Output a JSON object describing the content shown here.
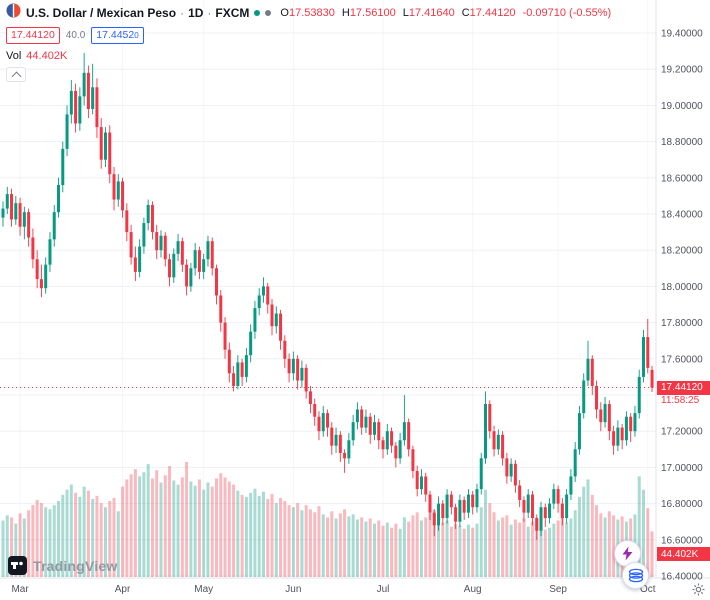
{
  "header": {
    "symbol": "U.S. Dollar / Mexican Peso",
    "sep1": "·",
    "interval": "1D",
    "sep2": "·",
    "exchange": "FXCM",
    "ohlc": {
      "o_label": "O",
      "o": "17.53830",
      "h_label": "H",
      "h": "17.56100",
      "l_label": "L",
      "l": "17.41640",
      "c_label": "C",
      "c": "17.44120",
      "change": "-0.09710 (-0.55%)"
    },
    "bid": "17.44120",
    "spread": "40.0",
    "ask": "17.4452",
    "ask_last_digit": "0",
    "vol_label": "Vol",
    "vol_value": "44.402K"
  },
  "price_scale": {
    "ticks": [
      {
        "label": "19.40000",
        "value": 19.4
      },
      {
        "label": "19.20000",
        "value": 19.2
      },
      {
        "label": "19.00000",
        "value": 19.0
      },
      {
        "label": "18.80000",
        "value": 18.8
      },
      {
        "label": "18.60000",
        "value": 18.6
      },
      {
        "label": "18.40000",
        "value": 18.4
      },
      {
        "label": "18.20000",
        "value": 18.2
      },
      {
        "label": "18.00000",
        "value": 18.0
      },
      {
        "label": "17.80000",
        "value": 17.8
      },
      {
        "label": "17.60000",
        "value": 17.6
      },
      {
        "label": "17.40000",
        "value": 17.4
      },
      {
        "label": "17.20000",
        "value": 17.2
      },
      {
        "label": "17.00000",
        "value": 17.0
      },
      {
        "label": "16.80000",
        "value": 16.8
      },
      {
        "label": "16.60000",
        "value": 16.6
      },
      {
        "label": "16.40000",
        "value": 16.4
      }
    ],
    "last_price": {
      "label": "17.44120",
      "value": 17.4412,
      "countdown": "11:58:25"
    },
    "volume_badge": "44.402K"
  },
  "time_scale": {
    "ticks": [
      {
        "label": "Mar",
        "index": 4
      },
      {
        "label": "Apr",
        "index": 28
      },
      {
        "label": "May",
        "index": 47
      },
      {
        "label": "Jun",
        "index": 68
      },
      {
        "label": "Jul",
        "index": 89
      },
      {
        "label": "Aug",
        "index": 110
      },
      {
        "label": "Sep",
        "index": 130
      },
      {
        "label": "Oct",
        "index": 151
      }
    ]
  },
  "logo_text": "TradingView",
  "colors": {
    "up": "#089981",
    "down": "#f23645",
    "vol_up": "rgba(8,153,129,0.35)",
    "vol_down": "rgba(242,54,69,0.35)",
    "grid": "#eef1f6",
    "vgrid": "#f3f5f9",
    "axis_border": "#e0e3eb",
    "badge_red": "#f23645",
    "accent_blue": "#2962ff"
  },
  "chart_data": {
    "type": "candlestick",
    "title": "U.S. Dollar / Mexican Peso · 1D · FXCM",
    "symbol": "USDMXN",
    "interval": "1D",
    "exchange": "FXCM",
    "y_range": [
      16.4,
      19.4
    ],
    "x_tick_labels": [
      "Mar",
      "Apr",
      "May",
      "Jun",
      "Jul",
      "Aug",
      "Sep",
      "Oct"
    ],
    "last": {
      "open": 17.5383,
      "high": 17.561,
      "low": 17.4164,
      "close": 17.4412,
      "change": -0.0971,
      "change_pct": -0.55,
      "volume_k": 44.402
    },
    "volume_unit": "K",
    "candles_format": [
      "open",
      "high",
      "low",
      "close",
      "volume_k"
    ],
    "candles": [
      [
        18.38,
        18.47,
        18.33,
        18.43,
        55
      ],
      [
        18.43,
        18.55,
        18.4,
        18.51,
        60
      ],
      [
        18.51,
        18.54,
        18.33,
        18.37,
        58
      ],
      [
        18.37,
        18.5,
        18.34,
        18.46,
        52
      ],
      [
        18.46,
        18.49,
        18.28,
        18.33,
        62
      ],
      [
        18.33,
        18.44,
        18.26,
        18.41,
        57
      ],
      [
        18.41,
        18.43,
        18.22,
        18.27,
        65
      ],
      [
        18.27,
        18.32,
        18.1,
        18.15,
        70
      ],
      [
        18.15,
        18.2,
        17.99,
        18.04,
        75
      ],
      [
        18.04,
        18.12,
        17.94,
        17.99,
        72
      ],
      [
        17.99,
        18.16,
        17.96,
        18.12,
        68
      ],
      [
        18.12,
        18.3,
        18.08,
        18.26,
        66
      ],
      [
        18.26,
        18.45,
        18.22,
        18.41,
        70
      ],
      [
        18.41,
        18.6,
        18.38,
        18.56,
        74
      ],
      [
        18.56,
        18.8,
        18.52,
        18.76,
        80
      ],
      [
        18.76,
        19.0,
        18.72,
        18.95,
        85
      ],
      [
        18.95,
        19.14,
        18.9,
        19.08,
        90
      ],
      [
        19.08,
        19.12,
        18.85,
        18.9,
        82
      ],
      [
        18.9,
        19.1,
        18.86,
        19.05,
        78
      ],
      [
        19.05,
        19.29,
        19.0,
        19.18,
        88
      ],
      [
        19.18,
        19.22,
        18.93,
        18.98,
        84
      ],
      [
        18.98,
        19.23,
        18.95,
        19.1,
        76
      ],
      [
        19.1,
        19.15,
        18.82,
        18.88,
        79
      ],
      [
        18.88,
        18.93,
        18.65,
        18.7,
        72
      ],
      [
        18.7,
        18.88,
        18.66,
        18.85,
        68
      ],
      [
        18.85,
        18.89,
        18.57,
        18.62,
        74
      ],
      [
        18.62,
        18.66,
        18.42,
        18.48,
        77
      ],
      [
        18.48,
        18.62,
        18.44,
        18.58,
        64
      ],
      [
        18.58,
        18.6,
        18.38,
        18.42,
        88
      ],
      [
        18.42,
        18.46,
        18.25,
        18.3,
        95
      ],
      [
        18.3,
        18.34,
        18.12,
        18.16,
        100
      ],
      [
        18.16,
        18.22,
        18.03,
        18.08,
        105
      ],
      [
        18.08,
        18.26,
        18.05,
        18.22,
        98
      ],
      [
        18.22,
        18.38,
        18.18,
        18.35,
        102
      ],
      [
        18.35,
        18.48,
        18.31,
        18.45,
        110
      ],
      [
        18.45,
        18.47,
        18.26,
        18.3,
        96
      ],
      [
        18.3,
        18.34,
        18.15,
        18.2,
        104
      ],
      [
        18.2,
        18.31,
        18.16,
        18.28,
        92
      ],
      [
        18.28,
        18.3,
        18.11,
        18.15,
        99
      ],
      [
        18.15,
        18.18,
        18.0,
        18.05,
        108
      ],
      [
        18.05,
        18.21,
        18.02,
        18.18,
        94
      ],
      [
        18.18,
        18.29,
        18.14,
        18.25,
        90
      ],
      [
        18.25,
        18.27,
        18.08,
        18.12,
        97
      ],
      [
        18.12,
        18.15,
        17.95,
        18.0,
        112
      ],
      [
        18.0,
        18.13,
        17.97,
        18.1,
        93
      ],
      [
        18.1,
        18.24,
        18.06,
        18.2,
        89
      ],
      [
        18.2,
        18.22,
        18.04,
        18.08,
        95
      ],
      [
        18.08,
        18.18,
        18.04,
        18.15,
        85
      ],
      [
        18.15,
        18.28,
        18.11,
        18.25,
        92
      ],
      [
        18.25,
        18.27,
        18.06,
        18.1,
        88
      ],
      [
        18.1,
        18.12,
        17.9,
        17.95,
        96
      ],
      [
        17.95,
        17.98,
        17.75,
        17.8,
        101
      ],
      [
        17.8,
        17.83,
        17.6,
        17.65,
        97
      ],
      [
        17.65,
        17.69,
        17.47,
        17.52,
        93
      ],
      [
        17.52,
        17.56,
        17.42,
        17.45,
        90
      ],
      [
        17.45,
        17.62,
        17.43,
        17.58,
        84
      ],
      [
        17.58,
        17.6,
        17.45,
        17.5,
        80
      ],
      [
        17.5,
        17.66,
        17.47,
        17.62,
        78
      ],
      [
        17.62,
        17.79,
        17.58,
        17.75,
        82
      ],
      [
        17.75,
        17.92,
        17.71,
        17.88,
        86
      ],
      [
        17.88,
        17.99,
        17.84,
        17.95,
        79
      ],
      [
        17.95,
        18.05,
        17.91,
        18.0,
        83
      ],
      [
        18.0,
        18.02,
        17.85,
        17.9,
        76
      ],
      [
        17.9,
        17.93,
        17.73,
        17.78,
        81
      ],
      [
        17.78,
        17.89,
        17.74,
        17.85,
        72
      ],
      [
        17.85,
        17.87,
        17.65,
        17.7,
        77
      ],
      [
        17.7,
        17.73,
        17.55,
        17.6,
        74
      ],
      [
        17.6,
        17.63,
        17.47,
        17.52,
        70
      ],
      [
        17.52,
        17.64,
        17.48,
        17.6,
        68
      ],
      [
        17.6,
        17.62,
        17.43,
        17.48,
        72
      ],
      [
        17.48,
        17.59,
        17.44,
        17.55,
        65
      ],
      [
        17.55,
        17.57,
        17.38,
        17.42,
        70
      ],
      [
        17.42,
        17.45,
        17.3,
        17.35,
        66
      ],
      [
        17.35,
        17.38,
        17.23,
        17.28,
        63
      ],
      [
        17.28,
        17.31,
        17.15,
        17.2,
        69
      ],
      [
        17.2,
        17.34,
        17.17,
        17.3,
        61
      ],
      [
        17.3,
        17.32,
        17.17,
        17.22,
        58
      ],
      [
        17.22,
        17.25,
        17.07,
        17.12,
        64
      ],
      [
        17.12,
        17.22,
        17.08,
        17.18,
        57
      ],
      [
        17.18,
        17.2,
        17.03,
        17.08,
        62
      ],
      [
        17.08,
        17.1,
        16.97,
        17.05,
        66
      ],
      [
        17.05,
        17.19,
        17.02,
        17.15,
        59
      ],
      [
        17.15,
        17.29,
        17.12,
        17.25,
        61
      ],
      [
        17.25,
        17.36,
        17.21,
        17.32,
        56
      ],
      [
        17.32,
        17.34,
        17.18,
        17.22,
        58
      ],
      [
        17.22,
        17.32,
        17.19,
        17.28,
        54
      ],
      [
        17.28,
        17.3,
        17.13,
        17.18,
        57
      ],
      [
        17.18,
        17.29,
        17.15,
        17.25,
        52
      ],
      [
        17.25,
        17.27,
        17.1,
        17.15,
        55
      ],
      [
        17.15,
        17.17,
        17.05,
        17.1,
        50
      ],
      [
        17.1,
        17.24,
        17.07,
        17.2,
        53
      ],
      [
        17.2,
        17.22,
        17.08,
        17.12,
        48
      ],
      [
        17.12,
        17.14,
        17.0,
        17.05,
        52
      ],
      [
        17.05,
        17.19,
        17.02,
        17.15,
        47
      ],
      [
        17.15,
        17.4,
        17.12,
        17.25,
        58
      ],
      [
        17.25,
        17.27,
        17.06,
        17.1,
        54
      ],
      [
        17.1,
        17.12,
        16.94,
        16.98,
        60
      ],
      [
        16.98,
        17.01,
        16.84,
        16.88,
        63
      ],
      [
        16.88,
        16.99,
        16.85,
        16.95,
        55
      ],
      [
        16.95,
        16.97,
        16.81,
        16.85,
        58
      ],
      [
        16.85,
        16.87,
        16.71,
        16.75,
        62
      ],
      [
        16.75,
        16.77,
        16.62,
        16.68,
        65
      ],
      [
        16.68,
        16.84,
        16.65,
        16.8,
        57
      ],
      [
        16.8,
        16.82,
        16.68,
        16.72,
        53
      ],
      [
        16.72,
        16.88,
        16.69,
        16.85,
        55
      ],
      [
        16.85,
        16.87,
        16.74,
        16.78,
        49
      ],
      [
        16.78,
        16.8,
        16.66,
        16.7,
        52
      ],
      [
        16.7,
        16.85,
        16.67,
        16.82,
        50
      ],
      [
        16.82,
        16.84,
        16.71,
        16.75,
        47
      ],
      [
        16.75,
        16.88,
        16.72,
        16.85,
        51
      ],
      [
        16.85,
        16.87,
        16.74,
        16.78,
        48
      ],
      [
        16.78,
        16.91,
        16.75,
        16.88,
        52
      ],
      [
        16.88,
        17.08,
        16.85,
        17.05,
        68
      ],
      [
        17.05,
        17.42,
        17.02,
        17.35,
        85
      ],
      [
        17.35,
        17.37,
        17.16,
        17.2,
        72
      ],
      [
        17.2,
        17.23,
        17.06,
        17.1,
        63
      ],
      [
        17.1,
        17.21,
        17.07,
        17.18,
        55
      ],
      [
        17.18,
        17.2,
        17.01,
        17.05,
        58
      ],
      [
        17.05,
        17.08,
        16.91,
        16.95,
        60
      ],
      [
        16.95,
        17.05,
        16.92,
        17.02,
        51
      ],
      [
        17.02,
        17.04,
        16.86,
        16.9,
        56
      ],
      [
        16.9,
        16.93,
        16.78,
        16.82,
        53
      ],
      [
        16.82,
        16.84,
        16.7,
        16.75,
        57
      ],
      [
        16.75,
        16.88,
        16.72,
        16.85,
        49
      ],
      [
        16.85,
        16.87,
        16.68,
        16.72,
        54
      ],
      [
        16.72,
        16.74,
        16.6,
        16.65,
        58
      ],
      [
        16.65,
        16.81,
        16.62,
        16.78,
        50
      ],
      [
        16.78,
        16.8,
        16.67,
        16.72,
        46
      ],
      [
        16.72,
        16.83,
        16.69,
        16.8,
        48
      ],
      [
        16.8,
        16.91,
        16.77,
        16.88,
        52
      ],
      [
        16.88,
        16.9,
        16.75,
        16.8,
        55
      ],
      [
        16.8,
        16.83,
        16.68,
        16.72,
        58
      ],
      [
        16.72,
        16.88,
        16.69,
        16.85,
        53
      ],
      [
        16.85,
        16.99,
        16.82,
        16.95,
        57
      ],
      [
        16.95,
        17.14,
        16.92,
        17.1,
        65
      ],
      [
        17.1,
        17.34,
        17.07,
        17.3,
        78
      ],
      [
        17.3,
        17.52,
        17.27,
        17.48,
        88
      ],
      [
        17.48,
        17.7,
        17.45,
        17.6,
        95
      ],
      [
        17.6,
        17.62,
        17.4,
        17.45,
        80
      ],
      [
        17.45,
        17.48,
        17.27,
        17.32,
        70
      ],
      [
        17.32,
        17.36,
        17.2,
        17.25,
        62
      ],
      [
        17.25,
        17.39,
        17.22,
        17.35,
        58
      ],
      [
        17.35,
        17.37,
        17.15,
        17.2,
        64
      ],
      [
        17.2,
        17.23,
        17.07,
        17.12,
        60
      ],
      [
        17.12,
        17.26,
        17.09,
        17.22,
        56
      ],
      [
        17.22,
        17.24,
        17.1,
        17.15,
        59
      ],
      [
        17.15,
        17.31,
        17.12,
        17.28,
        54
      ],
      [
        17.28,
        17.3,
        17.14,
        17.2,
        57
      ],
      [
        17.2,
        17.34,
        17.17,
        17.3,
        61
      ],
      [
        17.3,
        17.54,
        17.27,
        17.5,
        98
      ],
      [
        17.5,
        17.76,
        17.47,
        17.72,
        85
      ],
      [
        17.72,
        17.82,
        17.52,
        17.55,
        67
      ],
      [
        17.5383,
        17.561,
        17.4164,
        17.4412,
        44.402
      ]
    ]
  }
}
